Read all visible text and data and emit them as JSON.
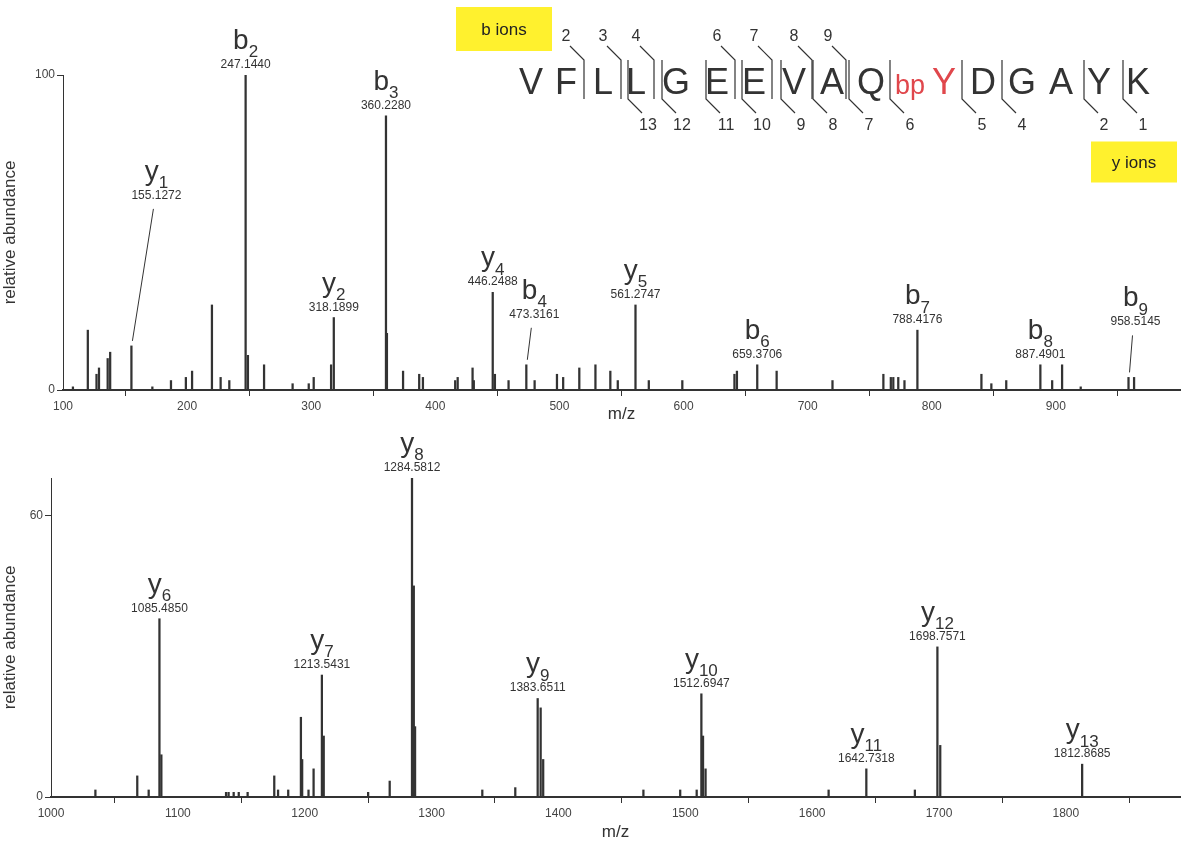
{
  "chart_data": [
    {
      "type": "bar",
      "color": "#333333",
      "xlabel": "m/z",
      "ylabel": "relative abundance",
      "xlim": [
        100,
        1000
      ],
      "xticks": [
        100,
        200,
        300,
        400,
        500,
        600,
        700,
        800,
        900
      ],
      "ylim": [
        0,
        100
      ],
      "yticks": [
        0,
        100
      ],
      "x": [
        108,
        120,
        127,
        129,
        136,
        138,
        155.1272,
        172,
        187,
        199,
        204,
        220,
        227,
        234,
        247.144,
        249,
        262,
        285,
        298,
        302,
        316,
        318.1899,
        360.228,
        361,
        374,
        387,
        390,
        416,
        418,
        430,
        431,
        446.2488,
        448,
        459,
        473.3161,
        480,
        498,
        503,
        516,
        529,
        541,
        547,
        561.2747,
        572,
        599,
        641,
        643,
        659.3706,
        675,
        720,
        761,
        767,
        769,
        773,
        778,
        788.4176,
        840,
        848,
        860,
        887.4901,
        897,
        905,
        920,
        958.5145,
        963
      ],
      "values": [
        1,
        19,
        5,
        7,
        10,
        12,
        14,
        1,
        3,
        4,
        6,
        27,
        4,
        3,
        100,
        11,
        8,
        2,
        2,
        4,
        8,
        23,
        87,
        18,
        6,
        5,
        4,
        3,
        4,
        7,
        3,
        31,
        5,
        3,
        8,
        3,
        5,
        4,
        7,
        8,
        6,
        3,
        27,
        3,
        3,
        5,
        6,
        8,
        6,
        3,
        5,
        4,
        4,
        4,
        3,
        19,
        5,
        2,
        3,
        8,
        3,
        8,
        1,
        4,
        4
      ],
      "annotations": [
        {
          "text": "y$_{1}$",
          "x": 155.1272,
          "y": 14
        },
        {
          "text": "155.1272",
          "x": 155.1272,
          "y": 14
        },
        {
          "text": "b$_{2}$",
          "x": 247.144,
          "y": 100
        },
        {
          "text": "247.1440",
          "x": 247.144,
          "y": 100
        },
        {
          "text": "b$_{3}$",
          "x": 360.228,
          "y": 87
        },
        {
          "text": "360.2280",
          "x": 360.228,
          "y": 87
        },
        {
          "text": "y$_{2}$",
          "x": 318.1899,
          "y": 23
        },
        {
          "text": "318.1899",
          "x": 318.1899,
          "y": 23
        },
        {
          "text": "y$_{4}$",
          "x": 446.2488,
          "y": 31
        },
        {
          "text": "446.2488",
          "x": 446.2488,
          "y": 31
        },
        {
          "text": "b$_{4}$",
          "x": 473.3161,
          "y": 8
        },
        {
          "text": "473.3161",
          "x": 473.3161,
          "y": 8
        },
        {
          "text": "y$_{5}$",
          "x": 561.2747,
          "y": 27
        },
        {
          "text": "561.2747",
          "x": 561.2747,
          "y": 27
        },
        {
          "text": "b$_{6}$",
          "x": 659.3706,
          "y": 8
        },
        {
          "text": "659.3706",
          "x": 659.3706,
          "y": 8
        },
        {
          "text": "b$_{7}$",
          "x": 788.4176,
          "y": 19
        },
        {
          "text": "788.4176",
          "x": 788.4176,
          "y": 19
        },
        {
          "text": "b$_{8}$",
          "x": 887.4901,
          "y": 8
        },
        {
          "text": "887.4901",
          "x": 887.4901,
          "y": 8
        },
        {
          "text": "b$_{9}$",
          "x": 958.5145,
          "y": 4
        },
        {
          "text": "958.5145",
          "x": 958.5145,
          "y": 4
        },
        "b ions",
        "y ions",
        "V",
        "F",
        "L",
        "L",
        "G",
        "E",
        "E",
        "V",
        "A",
        "Q",
        "bp",
        "Y",
        "D",
        "G",
        "A",
        "Y",
        "K",
        "2",
        "3",
        "4",
        "6",
        "7",
        "8",
        "9",
        "13",
        "12",
        "11",
        "10",
        "9",
        "8",
        "7",
        "6",
        "5",
        "4",
        "2",
        "1"
      ]
    },
    {
      "type": "bar",
      "color": "#333333",
      "xlabel": "m/z",
      "ylabel": "relative abundance",
      "xlim": [
        1000,
        1890
      ],
      "xticks": [
        1000,
        1100,
        1200,
        1300,
        1400,
        1500,
        1600,
        1700,
        1800
      ],
      "ylim": [
        0,
        68
      ],
      "yticks": [
        0,
        60
      ],
      "x": [
        1035,
        1068,
        1077,
        1085.485,
        1087,
        1138,
        1140,
        1144,
        1148,
        1155,
        1176,
        1179,
        1187,
        1197,
        1198,
        1203,
        1207,
        1213.5431,
        1215,
        1250,
        1267,
        1284.5812,
        1286,
        1287,
        1340,
        1366,
        1383.6511,
        1386,
        1388,
        1467,
        1496,
        1509,
        1512.6947,
        1514,
        1516,
        1613,
        1642.7318,
        1681,
        1698.7571,
        1701,
        1812.8685
      ],
      "values": [
        1.5,
        4.5,
        1.5,
        38,
        9,
        1,
        1,
        1,
        1,
        1,
        4.5,
        1.5,
        1.5,
        17,
        8,
        1.5,
        6,
        26,
        13,
        1,
        3.4,
        68,
        45,
        15,
        1.5,
        2,
        21,
        19,
        8,
        1.5,
        1.5,
        1.5,
        22,
        13,
        6,
        1.5,
        6,
        1.5,
        32,
        11,
        7
      ],
      "annotations": [
        {
          "text": "y$_{6}$",
          "x": 1085.485,
          "y": 38
        },
        {
          "text": "1085.4850",
          "x": 1085.485,
          "y": 38
        },
        {
          "text": "y$_{7}$",
          "x": 1213.5431,
          "y": 26
        },
        {
          "text": "1213.5431",
          "x": 1213.5431,
          "y": 26
        },
        {
          "text": "y$_{8}$",
          "x": 1284.5812,
          "y": 68
        },
        {
          "text": "1284.5812",
          "x": 1284.5812,
          "y": 68
        },
        {
          "text": "y$_{9}$",
          "x": 1383.6511,
          "y": 21
        },
        {
          "text": "1383.6511",
          "x": 1383.6511,
          "y": 21
        },
        {
          "text": "y$_{10}$",
          "x": 1512.6947,
          "y": 22
        },
        {
          "text": "1512.6947",
          "x": 1512.6947,
          "y": 22
        },
        {
          "text": "y$_{11}$",
          "x": 1642.7318,
          "y": 6
        },
        {
          "text": "1642.7318",
          "x": 1642.7318,
          "y": 6
        },
        {
          "text": "y$_{12}$",
          "x": 1698.7571,
          "y": 32
        },
        {
          "text": "1698.7571",
          "x": 1698.7571,
          "y": 32
        },
        {
          "text": "y$_{13}$",
          "x": 1812.8685,
          "y": 7
        },
        {
          "text": "1812.8685",
          "x": 1812.8685,
          "y": 7
        }
      ]
    }
  ]
}
